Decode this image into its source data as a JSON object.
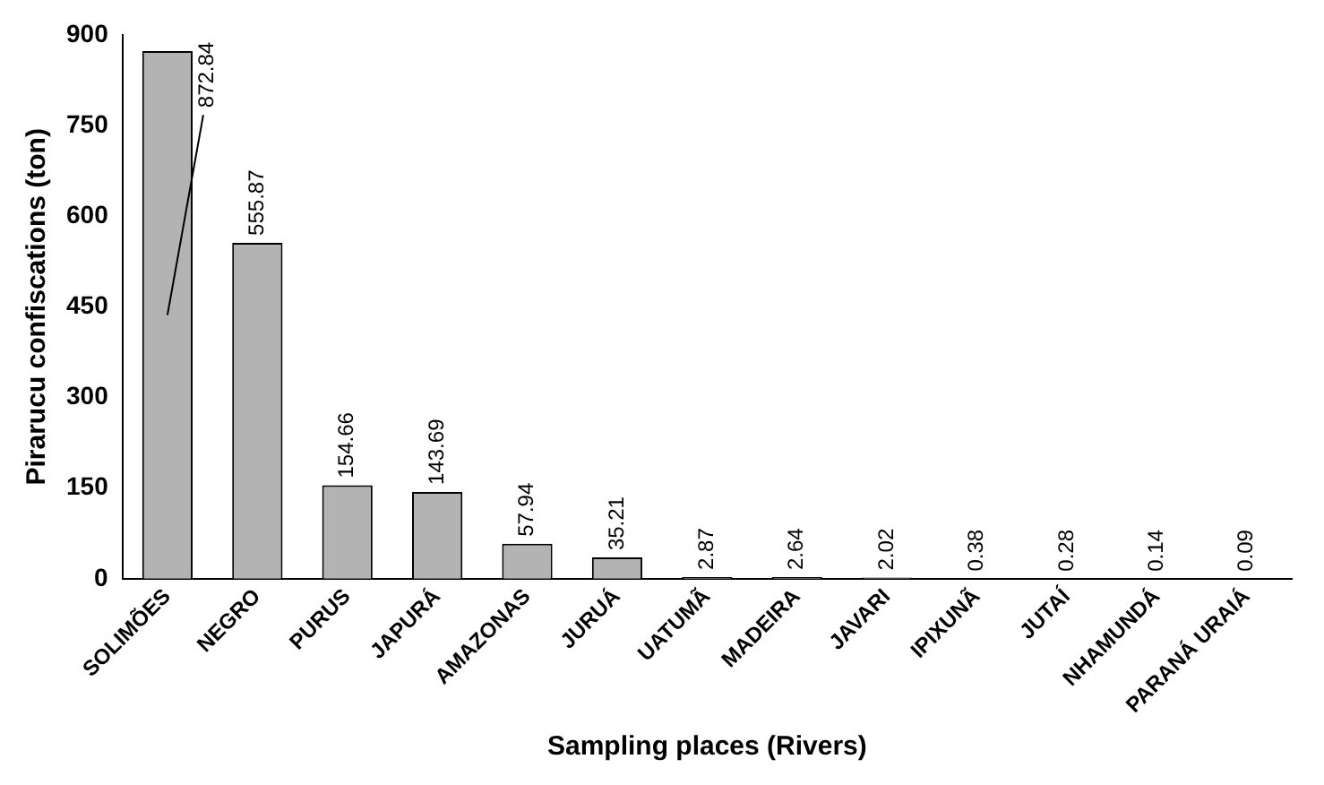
{
  "chart_data": {
    "type": "bar",
    "xlabel": "Sampling places (Rivers)",
    "ylabel": "Pirarucu confiscations (ton)",
    "categories": [
      "SOLIMÕES",
      "NEGRO",
      "PURUS",
      "JAPURÁ",
      "AMAZONAS",
      "JURUÁ",
      "UATUMÃ",
      "MADEIRA",
      "JAVARI",
      "IPIXUNÃ",
      "JUTAÍ",
      "NHAMUNDÁ",
      "PARANÁ URAIÁ"
    ],
    "values": [
      872.84,
      555.87,
      154.66,
      143.69,
      57.94,
      35.21,
      2.87,
      2.64,
      2.02,
      0.38,
      0.28,
      0.14,
      0.09
    ],
    "color": "#b3b3b3",
    "ylim": [
      0,
      900
    ],
    "yticks": [
      0,
      150,
      300,
      450,
      600,
      750,
      900
    ],
    "grid": false,
    "data_labels": true
  }
}
